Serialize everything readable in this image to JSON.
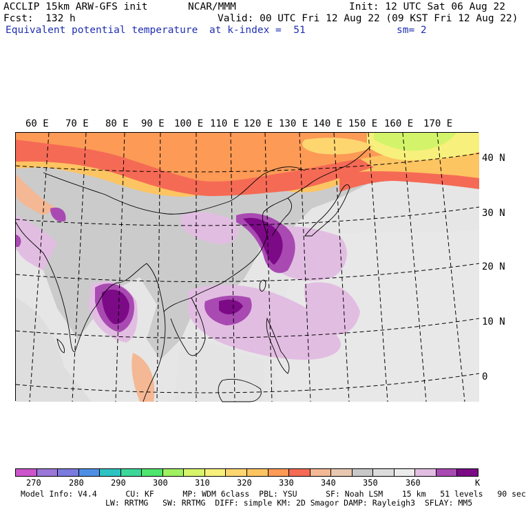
{
  "header": {
    "title": "ACCLIP 15km ARW-GFS init",
    "center": "NCAR/MMM",
    "init": "Init: 12 UTC Sat 06 Aug 22",
    "fcst": "Fcst:  132 h",
    "valid": "Valid: 00 UTC Fri 12 Aug 22 (09 KST Fri 12 Aug 22)",
    "field": "Equivalent potential temperature",
    "level": "at k-index =  51",
    "smooth": "sm= 2"
  },
  "map": {
    "lon_labels": [
      "60 E",
      "70 E",
      "80 E",
      "90 E",
      "100 E",
      "110 E",
      "120 E",
      "130 E",
      "140 E",
      "150 E",
      "160 E",
      "170 E"
    ],
    "lat_labels": [
      "40 N",
      "30 N",
      "20 N",
      "10 N",
      "0"
    ],
    "colors": {
      "bg_land": "#c8c8c8",
      "bg_sea": "#e9e9e9",
      "c340": "#f4b894",
      "c330": "#f56a55",
      "c325": "#fc9a56",
      "c320": "#fdc462",
      "c310": "#f8f07c",
      "c305": "#d3f46a",
      "c350": "#c8c8c8",
      "c355": "#e6e6e6",
      "c365": "#e2bde2",
      "c370": "#a94ab2",
      "c375": "#7c0a86"
    }
  },
  "colorbar": {
    "colors": [
      "#cc55cc",
      "#9a77d8",
      "#7a7adf",
      "#4e8fe6",
      "#2ec3c3",
      "#3cd89a",
      "#4ee66e",
      "#a0f060",
      "#d7f46a",
      "#f8f07c",
      "#fdd670",
      "#fdc462",
      "#fc9a56",
      "#f56a55",
      "#f4b894",
      "#e8c8b0",
      "#c8c8c8",
      "#dcdcdc",
      "#ececec",
      "#e2bde2",
      "#a94ab2",
      "#7c0a86"
    ],
    "labels": [
      "270",
      "280",
      "290",
      "300",
      "310",
      "320",
      "330",
      "340",
      "350",
      "360",
      "K"
    ]
  },
  "model_info": {
    "line1": "Model Info: V4.4      CU: KF      MP: WDM 6class  PBL: YSU      SF: Noah LSM    15 km   51 levels   90 sec",
    "line2": "LW: RRTMG   SW: RRTMG  DIFF: simple KM: 2D Smagor DAMP: Rayleigh3  SFLAY: MM5"
  }
}
